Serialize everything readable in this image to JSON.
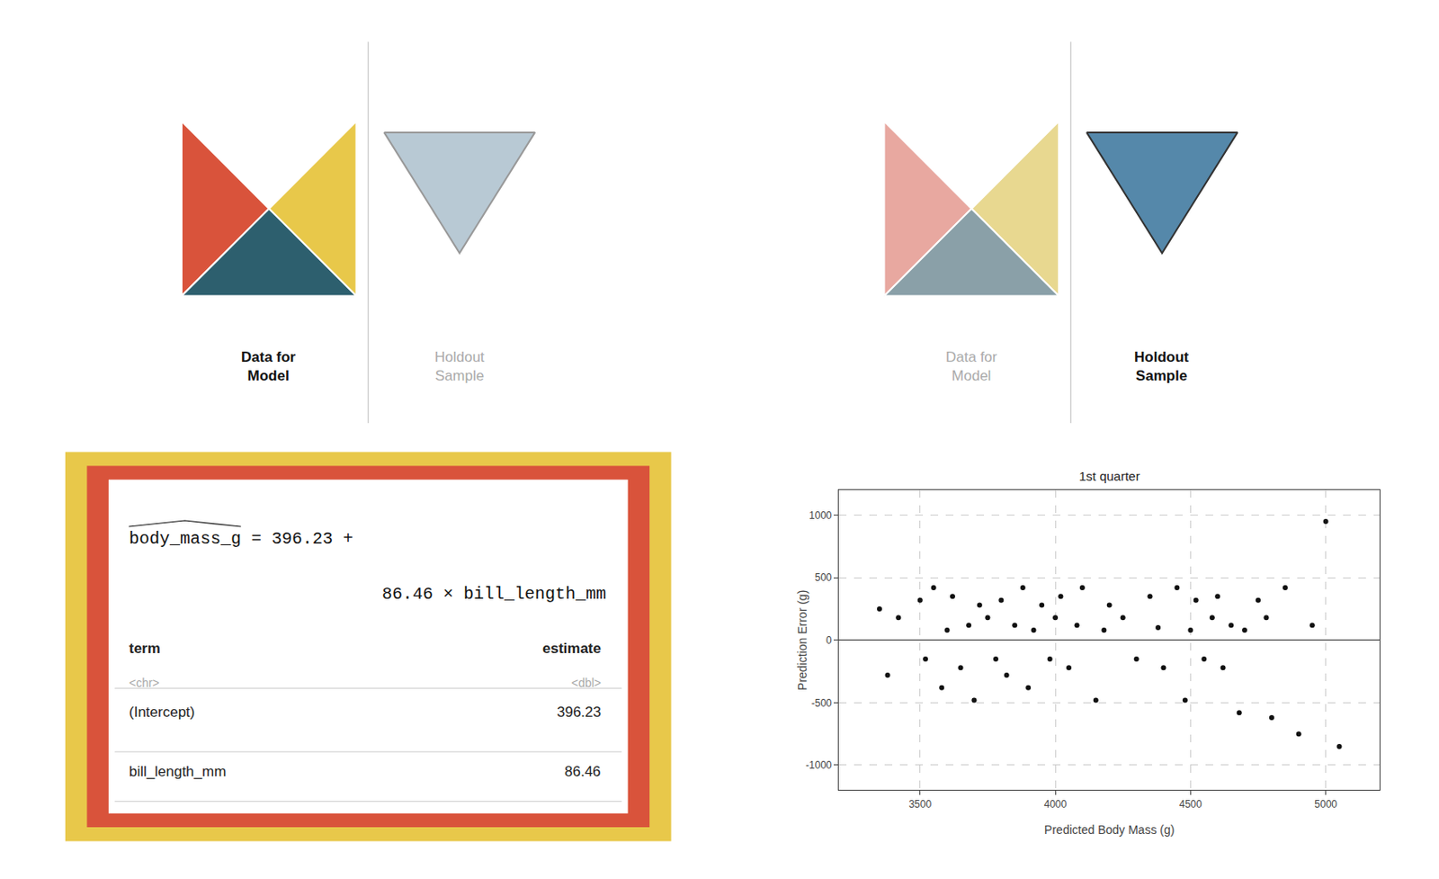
{
  "chart_data": [
    {
      "type": "tangram",
      "annotations": [
        "Data for\nModel",
        "Holdout\nSample"
      ],
      "colors": [
        "#d9533b",
        "#e8c84a",
        "#2d5f6e",
        "#b8c9d4"
      ]
    },
    {
      "type": "tangram",
      "annotations": [
        "Data for\nModel",
        "Holdout\nSample"
      ],
      "colors": [
        "#e8a8a0",
        "#e8d890",
        "#8aa0a8",
        "#5588aa"
      ]
    },
    {
      "type": "table",
      "title": "body_mass_g = 396.23 +\n86.46 × bill_length_mm",
      "annotations": [
        "term",
        "estimate",
        "<chr>",
        "<dbl>"
      ],
      "categories": [
        "(Intercept)",
        "bill_length_mm"
      ],
      "values": [
        396.23,
        86.46
      ],
      "data_labels": true,
      "colors": [
        "#e8c84a",
        "#d9533b"
      ]
    },
    {
      "type": "scatter",
      "title": "1st quarter",
      "xlabel": "Predicted Body Mass (g)",
      "ylabel": "Prediction Error (g)",
      "color": "#111111",
      "grid": true,
      "xlim": [
        3200,
        5200
      ],
      "ylim": [
        -1200,
        1200
      ],
      "xticks": [
        3500,
        4000,
        4500,
        5000
      ],
      "yticks": [
        -1000,
        -500,
        0,
        500,
        1000
      ],
      "x": [
        3350,
        3380,
        3420,
        3500,
        3520,
        3550,
        3580,
        3600,
        3620,
        3650,
        3680,
        3700,
        3720,
        3750,
        3780,
        3800,
        3820,
        3850,
        3880,
        3900,
        3920,
        3950,
        3980,
        4000,
        4020,
        4050,
        4080,
        4100,
        4150,
        4180,
        4200,
        4250,
        4300,
        4350,
        4380,
        4400,
        4450,
        4480,
        4500,
        4520,
        4550,
        4580,
        4600,
        4620,
        4650,
        4680,
        4700,
        4750,
        4780,
        4800,
        4850,
        4900,
        4950,
        5000,
        5050
      ],
      "values": [
        250,
        -280,
        180,
        320,
        -150,
        420,
        -380,
        80,
        350,
        -220,
        120,
        -480,
        280,
        180,
        -150,
        320,
        -280,
        120,
        420,
        -380,
        80,
        280,
        -150,
        180,
        350,
        -220,
        120,
        420,
        -480,
        80,
        280,
        180,
        -150,
        350,
        100,
        -220,
        420,
        -480,
        80,
        320,
        -150,
        180,
        350,
        -220,
        120,
        -580,
        80,
        320,
        180,
        -620,
        420,
        -750,
        120,
        950,
        -850
      ]
    }
  ]
}
